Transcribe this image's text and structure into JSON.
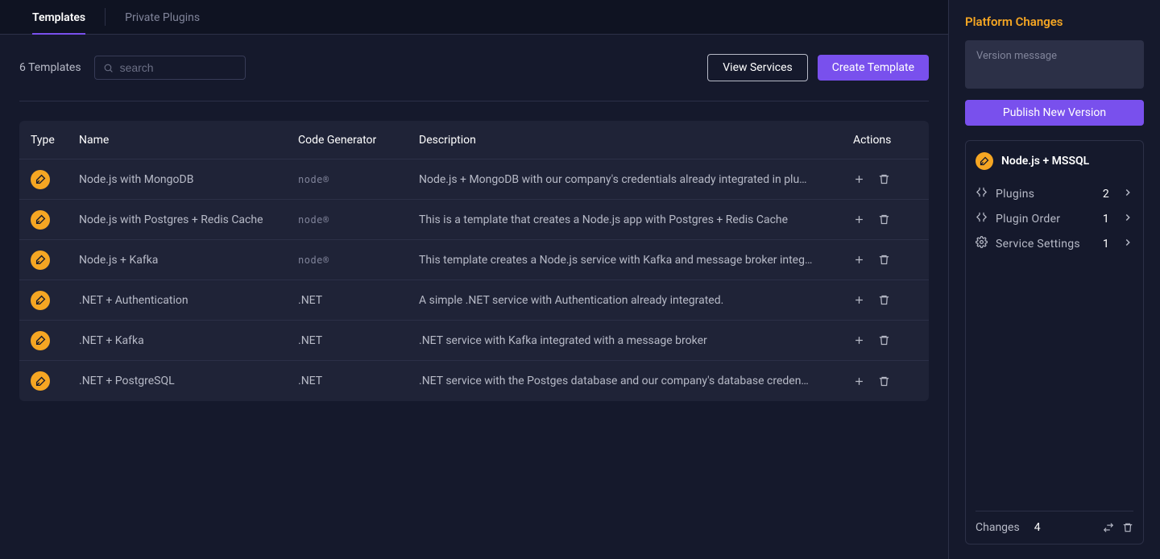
{
  "tabs": {
    "templates": "Templates",
    "privatePlugins": "Private Plugins"
  },
  "toolbar": {
    "count_label": "6 Templates",
    "search_placeholder": "search",
    "view_services": "View Services",
    "create_template": "Create Template"
  },
  "table": {
    "headers": {
      "type": "Type",
      "name": "Name",
      "generator": "Code Generator",
      "description": "Description",
      "actions": "Actions"
    },
    "rows": [
      {
        "name": "Node.js with MongoDB",
        "generator": "node",
        "generator_label": "node®",
        "description": "Node.js + MongoDB with our company's credentials already integrated in plu…"
      },
      {
        "name": "Node.js with Postgres + Redis Cache",
        "generator": "node",
        "generator_label": "node®",
        "description": "This is a template that creates a Node.js app with Postgres + Redis Cache"
      },
      {
        "name": "Node.js + Kafka",
        "generator": "node",
        "generator_label": "node®",
        "description": "This template creates a Node.js service with Kafka and message broker integ…"
      },
      {
        "name": ".NET + Authentication",
        "generator": "dotnet",
        "generator_label": ".NET",
        "description": "A simple .NET service with Authentication already integrated."
      },
      {
        "name": ".NET + Kafka",
        "generator": "dotnet",
        "generator_label": ".NET",
        "description": ".NET service with Kafka integrated with a message broker"
      },
      {
        "name": ".NET + PostgreSQL",
        "generator": "dotnet",
        "generator_label": ".NET",
        "description": ".NET service with the Postges database and our company's database creden…"
      }
    ]
  },
  "side": {
    "title": "Platform Changes",
    "version_placeholder": "Version message",
    "publish_label": "Publish New Version",
    "service": {
      "name": "Node.js + MSSQL"
    },
    "items": [
      {
        "icon": "plugin",
        "label": "Plugins",
        "count": "2"
      },
      {
        "icon": "plugin",
        "label": "Plugin Order",
        "count": "1"
      },
      {
        "icon": "settings",
        "label": "Service Settings",
        "count": "1"
      }
    ],
    "footer": {
      "label": "Changes",
      "count": "4"
    }
  },
  "colors": {
    "accent": "#7950ed",
    "warning": "#f5a623",
    "bg": "#15192c",
    "panel": "#1f2337",
    "border": "#2c3047"
  }
}
